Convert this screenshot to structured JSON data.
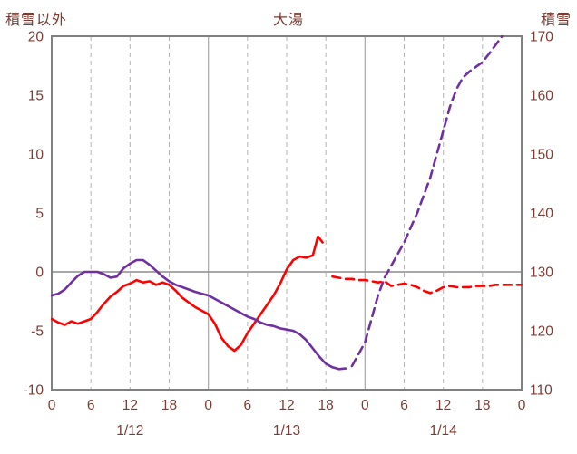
{
  "header": {
    "left_axis_title": "積雪以外",
    "title": "大湯",
    "right_axis_title": "積雪"
  },
  "colors": {
    "text": "#7d3b31",
    "border": "#808080",
    "day_gridline": "#a6a6a6",
    "dashed_gridline": "#b3b3b3",
    "zero_line": "#8c8c8c",
    "series_red": "#ff0000",
    "series_purple": "#7030a0"
  },
  "chart_data": {
    "type": "line",
    "title": "大湯",
    "left_axis": {
      "title": "積雪以外",
      "min": -10,
      "max": 20,
      "ticks": [
        20,
        15,
        10,
        5,
        0,
        -5,
        -10
      ]
    },
    "right_axis": {
      "title": "積雪",
      "min": 110,
      "max": 170,
      "ticks": [
        170,
        160,
        150,
        140,
        130,
        120,
        110
      ]
    },
    "x_axis": {
      "min_hour": 0,
      "max_hour": 72,
      "tick_hours": [
        0,
        6,
        12,
        18,
        24,
        30,
        36,
        42,
        48,
        54,
        60,
        66,
        72
      ],
      "tick_labels": [
        "0",
        "6",
        "12",
        "18",
        "0",
        "6",
        "12",
        "18",
        "0",
        "6",
        "12",
        "18",
        "0"
      ],
      "solid_grid_hours": [
        24,
        48
      ],
      "dashed_grid_hours": [
        6,
        12,
        18,
        30,
        36,
        42,
        54,
        60,
        66
      ],
      "day_labels": [
        {
          "label": "1/12",
          "hour": 12
        },
        {
          "label": "1/13",
          "hour": 36
        },
        {
          "label": "1/14",
          "hour": 60
        }
      ]
    },
    "series": [
      {
        "name": "red-observed",
        "axis": "left",
        "color": "#ff0000",
        "dashed": false,
        "points": [
          [
            0,
            -4.0
          ],
          [
            1,
            -4.3
          ],
          [
            2,
            -4.5
          ],
          [
            3,
            -4.2
          ],
          [
            4,
            -4.4
          ],
          [
            5,
            -4.2
          ],
          [
            6,
            -4.0
          ],
          [
            7,
            -3.4
          ],
          [
            8,
            -2.7
          ],
          [
            9,
            -2.1
          ],
          [
            10,
            -1.7
          ],
          [
            11,
            -1.2
          ],
          [
            12,
            -1.0
          ],
          [
            13,
            -0.7
          ],
          [
            14,
            -0.9
          ],
          [
            15,
            -0.8
          ],
          [
            16,
            -1.1
          ],
          [
            17,
            -0.9
          ],
          [
            18,
            -1.1
          ],
          [
            19,
            -1.6
          ],
          [
            20,
            -2.2
          ],
          [
            21,
            -2.6
          ],
          [
            22,
            -3.0
          ],
          [
            23,
            -3.3
          ],
          [
            24,
            -3.6
          ],
          [
            25,
            -4.4
          ],
          [
            26,
            -5.6
          ],
          [
            27,
            -6.3
          ],
          [
            28,
            -6.7
          ],
          [
            29,
            -6.2
          ],
          [
            30,
            -5.2
          ],
          [
            31,
            -4.4
          ],
          [
            32,
            -3.6
          ],
          [
            33,
            -2.8
          ],
          [
            34,
            -2.0
          ],
          [
            35,
            -1.0
          ],
          [
            36,
            0.2
          ],
          [
            37,
            1.0
          ],
          [
            38,
            1.3
          ],
          [
            39,
            1.2
          ],
          [
            40,
            1.4
          ],
          [
            40.8,
            3.0
          ],
          [
            41.5,
            2.5
          ]
        ]
      },
      {
        "name": "red-forecast",
        "axis": "left",
        "color": "#ff0000",
        "dashed": true,
        "points": [
          [
            43,
            -0.4
          ],
          [
            44,
            -0.5
          ],
          [
            45,
            -0.6
          ],
          [
            46,
            -0.6
          ],
          [
            47,
            -0.7
          ],
          [
            48,
            -0.7
          ],
          [
            49,
            -0.8
          ],
          [
            50,
            -0.9
          ],
          [
            51,
            -0.8
          ],
          [
            52,
            -1.2
          ],
          [
            53,
            -1.1
          ],
          [
            54,
            -1.0
          ],
          [
            55,
            -1.1
          ],
          [
            56,
            -1.3
          ],
          [
            57,
            -1.6
          ],
          [
            58,
            -1.8
          ],
          [
            59,
            -1.6
          ],
          [
            60,
            -1.3
          ],
          [
            61,
            -1.2
          ],
          [
            62,
            -1.3
          ],
          [
            63,
            -1.3
          ],
          [
            64,
            -1.3
          ],
          [
            65,
            -1.2
          ],
          [
            66,
            -1.2
          ],
          [
            67,
            -1.2
          ],
          [
            68,
            -1.1
          ],
          [
            69,
            -1.1
          ],
          [
            70,
            -1.1
          ],
          [
            71,
            -1.1
          ],
          [
            72,
            -1.1
          ]
        ]
      },
      {
        "name": "purple-observed",
        "axis": "right",
        "color": "#7030a0",
        "dashed": false,
        "points": [
          [
            0,
            126
          ],
          [
            1,
            126.3
          ],
          [
            2,
            127
          ],
          [
            3,
            128.2
          ],
          [
            4,
            129.3
          ],
          [
            5,
            130
          ],
          [
            6,
            130
          ],
          [
            7,
            130
          ],
          [
            8,
            129.6
          ],
          [
            9,
            129
          ],
          [
            10,
            129.2
          ],
          [
            11,
            130.6
          ],
          [
            12,
            131.4
          ],
          [
            13,
            132
          ],
          [
            14,
            132
          ],
          [
            15,
            131.2
          ],
          [
            16,
            130.2
          ],
          [
            17,
            129.2
          ],
          [
            18,
            128.4
          ],
          [
            19,
            127.8
          ],
          [
            20,
            127.4
          ],
          [
            21,
            127
          ],
          [
            22,
            126.6
          ],
          [
            23,
            126.3
          ],
          [
            24,
            126
          ],
          [
            25,
            125.4
          ],
          [
            26,
            124.8
          ],
          [
            27,
            124.2
          ],
          [
            28,
            123.6
          ],
          [
            29,
            123
          ],
          [
            30,
            122.4
          ],
          [
            31,
            122
          ],
          [
            32,
            121.4
          ],
          [
            33,
            121
          ],
          [
            34,
            120.8
          ],
          [
            35,
            120.4
          ],
          [
            36,
            120.2
          ],
          [
            37,
            120
          ],
          [
            38,
            119.4
          ],
          [
            39,
            118.4
          ],
          [
            40,
            117
          ],
          [
            41,
            115.6
          ],
          [
            42,
            114.4
          ],
          [
            43,
            113.8
          ],
          [
            44,
            113.5
          ],
          [
            45,
            113.6
          ]
        ]
      },
      {
        "name": "purple-forecast",
        "axis": "right",
        "color": "#7030a0",
        "dashed": true,
        "points": [
          [
            46,
            114
          ],
          [
            47,
            116
          ],
          [
            48,
            118
          ],
          [
            49,
            122
          ],
          [
            50,
            126
          ],
          [
            51,
            129
          ],
          [
            52,
            131
          ],
          [
            53,
            133
          ],
          [
            54,
            135
          ],
          [
            55,
            137.5
          ],
          [
            56,
            140
          ],
          [
            57,
            143
          ],
          [
            58,
            146
          ],
          [
            59,
            150
          ],
          [
            60,
            154
          ],
          [
            61,
            158
          ],
          [
            62,
            161
          ],
          [
            63,
            163
          ],
          [
            64,
            164
          ],
          [
            65,
            164.8
          ],
          [
            66,
            165.6
          ],
          [
            67,
            167
          ],
          [
            68,
            168.5
          ],
          [
            69,
            170
          ]
        ]
      }
    ]
  }
}
